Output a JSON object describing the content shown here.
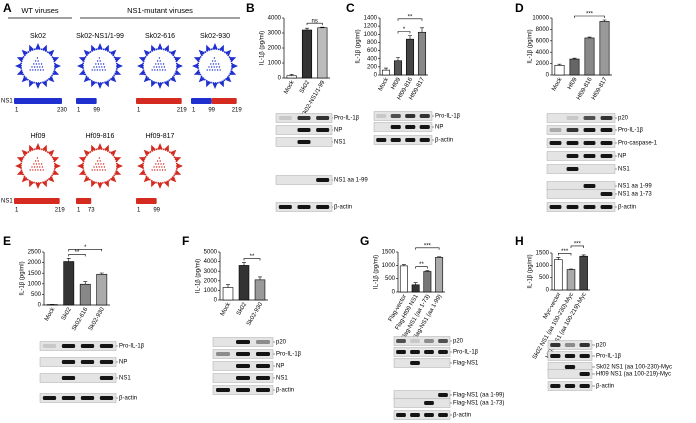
{
  "diagram": {
    "panel": "A",
    "groups": [
      "WT viruses",
      "NS1-mutant viruses"
    ],
    "aa_label": "NS1 aa",
    "viruses": [
      {
        "name": "Sk02",
        "color": "#1f2fd0",
        "segment_colors": [
          "#1f2fd0"
        ],
        "aa": [
          "1",
          "230"
        ]
      },
      {
        "name": "Sk02-NS1/1-99",
        "color": "#1f2fd0",
        "segment_colors": [
          "#1f2fd0"
        ],
        "aa": [
          "1",
          "99"
        ]
      },
      {
        "name": "Sk02-616",
        "color": "#1f2fd0",
        "segment_colors": [
          "#d42a20"
        ],
        "aa": [
          "1",
          "219"
        ]
      },
      {
        "name": "Sk02-930",
        "color": "#1f2fd0",
        "segment_colors": [
          "#1f2fd0",
          "#d42a20"
        ],
        "aa": [
          "1",
          "99",
          "219"
        ]
      },
      {
        "name": "Hf09",
        "color": "#d42a20",
        "segment_colors": [
          "#d42a20"
        ],
        "aa": [
          "1",
          "219"
        ]
      },
      {
        "name": "Hf09-816",
        "color": "#d42a20",
        "segment_colors": [
          "#d42a20"
        ],
        "aa": [
          "1",
          "73"
        ]
      },
      {
        "name": "Hf09-817",
        "color": "#d42a20",
        "segment_colors": [
          "#d42a20"
        ],
        "aa": [
          "1",
          "99"
        ]
      }
    ]
  },
  "chart_data": [
    {
      "type": "bar",
      "panel": "B",
      "y_label": "IL-1β (pg/ml)",
      "categories": [
        "Mock",
        "Sk02",
        "Sk02-NS1/1-99"
      ],
      "values": [
        150,
        3200,
        3350
      ],
      "errors": [
        80,
        120,
        40
      ],
      "colors": [
        "#ffffff",
        "#333333",
        "#bbbbbb"
      ],
      "ylim": [
        0,
        4000
      ],
      "yticks": [
        0,
        1000,
        2000,
        3000,
        4000
      ],
      "annotations": [
        "ns"
      ],
      "blot_labels": [
        "Pro-IL-1β",
        "NP",
        "NS1",
        "NS1 aa 1-99",
        "β-actin"
      ]
    },
    {
      "type": "bar",
      "panel": "C",
      "y_label": "IL-1β (pg/ml)",
      "categories": [
        "Mock",
        "Hf09",
        "Hf09-816",
        "Hf09-817"
      ],
      "values": [
        120,
        350,
        880,
        1050
      ],
      "errors": [
        50,
        80,
        90,
        110
      ],
      "colors": [
        "#ffffff",
        "#555555",
        "#444444",
        "#888888"
      ],
      "ylim": [
        0,
        1400
      ],
      "yticks": [
        0,
        200,
        400,
        600,
        800,
        1000,
        1200,
        1400
      ],
      "annotations": [
        "*",
        "**"
      ],
      "blot_labels": [
        "Pro-IL-1β",
        "NP",
        "β-actin"
      ]
    },
    {
      "type": "bar",
      "panel": "D",
      "y_label": "IL-1β (pg/ml)",
      "categories": [
        "Mock",
        "Hf09",
        "Hf09-816",
        "Hf09-817"
      ],
      "values": [
        1700,
        2800,
        6500,
        9400
      ],
      "errors": [
        200,
        150,
        150,
        250
      ],
      "colors": [
        "#ffffff",
        "#666666",
        "#888888",
        "#999999"
      ],
      "ylim": [
        0,
        10000
      ],
      "yticks": [
        0,
        2000,
        4000,
        6000,
        8000,
        10000
      ],
      "annotations": [
        "***"
      ],
      "blot_labels": [
        "p20",
        "Pro-IL-1β",
        "Pro-caspase-1",
        "NP",
        "NS1",
        "NS1 aa 1-99",
        "NS1 aa 1-73",
        "β-actin"
      ]
    },
    {
      "type": "bar",
      "panel": "E",
      "y_label": "IL-1β (pg/ml)",
      "categories": [
        "Mock",
        "Sk02",
        "Sk02-616",
        "Sk02-930"
      ],
      "values": [
        20,
        2050,
        980,
        1450
      ],
      "errors": [
        10,
        150,
        120,
        60
      ],
      "colors": [
        "#ffffff",
        "#333333",
        "#888888",
        "#aaaaaa"
      ],
      "ylim": [
        0,
        2500
      ],
      "yticks": [
        0,
        500,
        1000,
        1500,
        2000,
        2500
      ],
      "annotations": [
        "**",
        "*"
      ],
      "blot_labels": [
        "Pro-IL-1β",
        "NP",
        "NS1",
        "β-actin"
      ]
    },
    {
      "type": "bar",
      "panel": "F",
      "y_label": "IL-1β (pg/ml)",
      "categories": [
        "Mock",
        "Sk02",
        "Sk02-930"
      ],
      "values": [
        1300,
        3600,
        2100
      ],
      "errors": [
        300,
        300,
        300
      ],
      "colors": [
        "#ffffff",
        "#333333",
        "#999999"
      ],
      "ylim": [
        0,
        5000
      ],
      "yticks": [
        0,
        1000,
        2000,
        3000,
        4000,
        5000
      ],
      "annotations": [
        "**"
      ],
      "blot_labels": [
        "p20",
        "Pro-IL-1β",
        "NP",
        "NS1",
        "β-actin"
      ]
    },
    {
      "type": "bar",
      "panel": "G",
      "y_label": "IL-1β (pg/ml)",
      "categories": [
        "Flag-vector",
        "Flag-Hf09 NS1",
        "Flag-NS1 (aa 1-73)",
        "Flag-NS1 (aa 1-99)"
      ],
      "values": [
        980,
        270,
        770,
        1300
      ],
      "errors": [
        50,
        80,
        30,
        20
      ],
      "colors": [
        "#ffffff",
        "#333333",
        "#777777",
        "#aaaaaa"
      ],
      "ylim": [
        0,
        1500
      ],
      "yticks": [
        0,
        500,
        1000,
        1500
      ],
      "annotations": [
        "**",
        "***"
      ],
      "blot_labels": [
        "p20",
        "Pro-IL-1β",
        "Flag-NS1",
        "Flag-NS1 (aa 1-99)",
        "Flag-NS1 (aa 1-73)",
        "β-actin"
      ]
    },
    {
      "type": "bar",
      "panel": "H",
      "y_label": "IL-1β (pg/ml)",
      "categories": [
        "Myc-vector",
        "Sk02 NS1 (aa 100-230)-Myc",
        "Hf09 NS1 (aa 100-219)-Myc"
      ],
      "values": [
        1230,
        830,
        1370
      ],
      "errors": [
        90,
        20,
        50
      ],
      "colors": [
        "#ffffff",
        "#aaaaaa",
        "#444444"
      ],
      "ylim": [
        0,
        1500
      ],
      "yticks": [
        0,
        500,
        1000,
        1500
      ],
      "annotations": [
        "***",
        "***"
      ],
      "blot_labels": [
        "p20",
        "Pro-IL-1β",
        "Sk02 NS1 (aa 100-230)-Myc",
        "Hf09 NS1 (aa 100-219)-Myc",
        "β-actin"
      ]
    }
  ]
}
